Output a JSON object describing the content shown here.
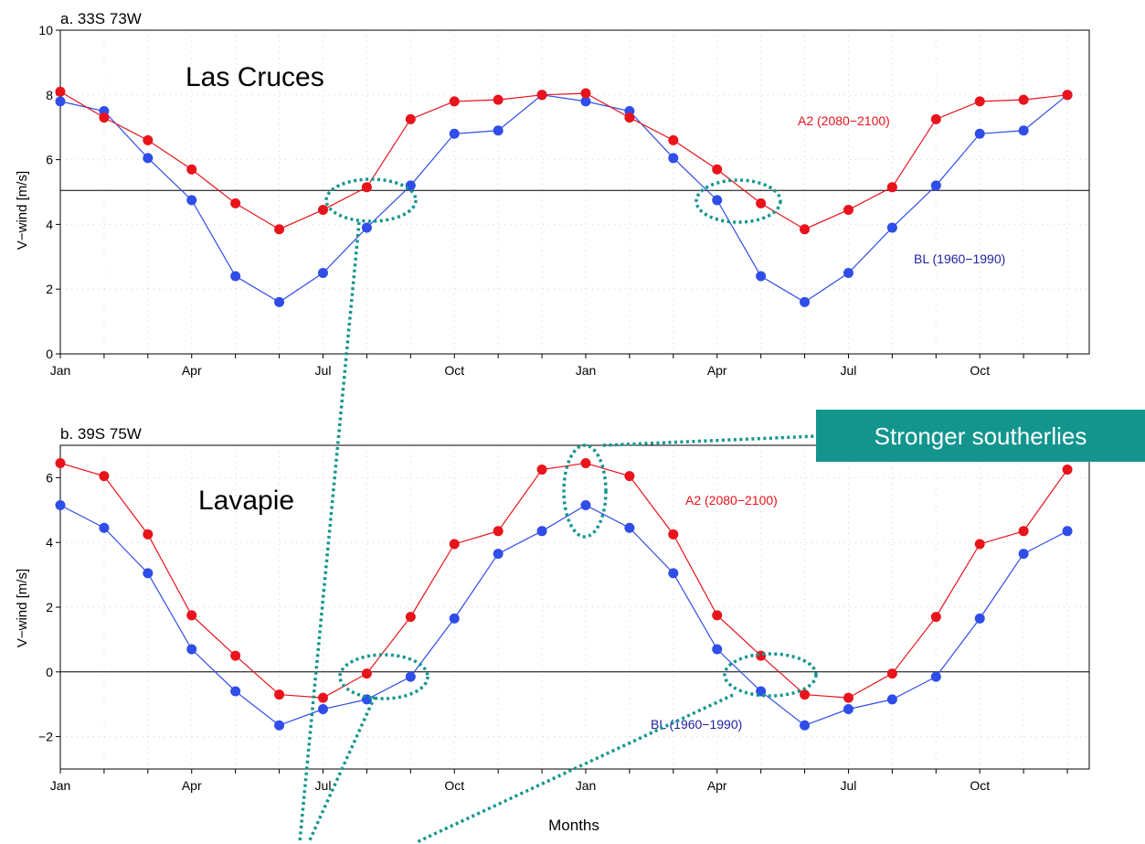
{
  "xlabel": "Months",
  "colors": {
    "a2": "#e8131b",
    "bl": "#2f4de8",
    "bl_text": "#1f1f9e",
    "callout": "#13958e"
  },
  "chart_data": [
    {
      "type": "line",
      "panel_title": "a. 33S 73W",
      "site": "Las Cruces",
      "ylabel": "V−wind [m/s]",
      "ylim": [
        0,
        10
      ],
      "yticks": [
        0,
        2,
        4,
        6,
        8,
        10
      ],
      "reference_line": 5.05,
      "x": [
        1,
        2,
        3,
        4,
        5,
        6,
        7,
        8,
        9,
        10,
        11,
        12,
        13,
        14,
        15,
        16,
        17,
        18,
        19,
        20,
        21,
        22,
        23,
        24
      ],
      "xlim": [
        1,
        24.5
      ],
      "xtick_labels": [
        {
          "x": 1,
          "label": "Jan"
        },
        {
          "x": 4,
          "label": "Apr"
        },
        {
          "x": 7,
          "label": "Jul"
        },
        {
          "x": 10,
          "label": "Oct"
        },
        {
          "x": 13,
          "label": "Jan"
        },
        {
          "x": 16,
          "label": "Apr"
        },
        {
          "x": 19,
          "label": "Jul"
        },
        {
          "x": 22,
          "label": "Oct"
        }
      ],
      "series": [
        {
          "name": "A2 (2080−2100)",
          "color_key": "a2",
          "values": [
            8.1,
            7.3,
            6.6,
            5.7,
            4.65,
            3.85,
            4.45,
            5.15,
            7.25,
            7.8,
            7.85,
            8.0,
            8.05,
            7.3,
            6.6,
            5.7,
            4.65,
            3.85,
            4.45,
            5.15,
            7.25,
            7.8,
            7.85,
            8.0
          ]
        },
        {
          "name": "BL (1960−1990)",
          "color_key": "bl",
          "values": [
            7.8,
            7.5,
            6.05,
            4.75,
            2.4,
            1.6,
            2.5,
            3.9,
            5.2,
            6.8,
            6.9,
            8.0,
            7.8,
            7.5,
            6.05,
            4.75,
            2.4,
            1.6,
            2.5,
            3.9,
            5.2,
            6.8,
            6.9,
            8.0
          ]
        }
      ]
    },
    {
      "type": "line",
      "panel_title": "b. 39S 75W",
      "site": "Lavapie",
      "ylabel": "V−wind [m/s]",
      "ylim": [
        -3,
        7
      ],
      "yticks": [
        -2,
        0,
        2,
        4,
        6
      ],
      "reference_line": 0,
      "x": [
        1,
        2,
        3,
        4,
        5,
        6,
        7,
        8,
        9,
        10,
        11,
        12,
        13,
        14,
        15,
        16,
        17,
        18,
        19,
        20,
        21,
        22,
        23,
        24
      ],
      "xlim": [
        1,
        24.5
      ],
      "xtick_labels": [
        {
          "x": 1,
          "label": "Jan"
        },
        {
          "x": 4,
          "label": "Apr"
        },
        {
          "x": 7,
          "label": "Jul"
        },
        {
          "x": 10,
          "label": "Oct"
        },
        {
          "x": 13,
          "label": "Jan"
        },
        {
          "x": 16,
          "label": "Apr"
        },
        {
          "x": 19,
          "label": "Jul"
        },
        {
          "x": 22,
          "label": "Oct"
        }
      ],
      "series": [
        {
          "name": "A2 (2080−2100)",
          "color_key": "a2",
          "values": [
            6.45,
            6.05,
            4.25,
            1.75,
            0.5,
            -0.7,
            -0.8,
            -0.05,
            1.7,
            3.95,
            4.35,
            6.25,
            6.45,
            6.05,
            4.25,
            1.75,
            0.5,
            -0.7,
            -0.8,
            -0.05,
            1.7,
            3.95,
            4.35,
            6.25
          ]
        },
        {
          "name": "BL (1960−1990)",
          "color_key": "bl",
          "values": [
            5.15,
            4.45,
            3.05,
            0.7,
            -0.6,
            -1.65,
            -1.15,
            -0.85,
            -0.15,
            1.65,
            3.65,
            4.35,
            5.15,
            4.45,
            3.05,
            0.7,
            -0.6,
            -1.65,
            -1.15,
            -0.85,
            -0.15,
            1.65,
            3.65,
            4.35
          ]
        }
      ]
    }
  ],
  "callout": {
    "text": "Stronger southerlies"
  }
}
